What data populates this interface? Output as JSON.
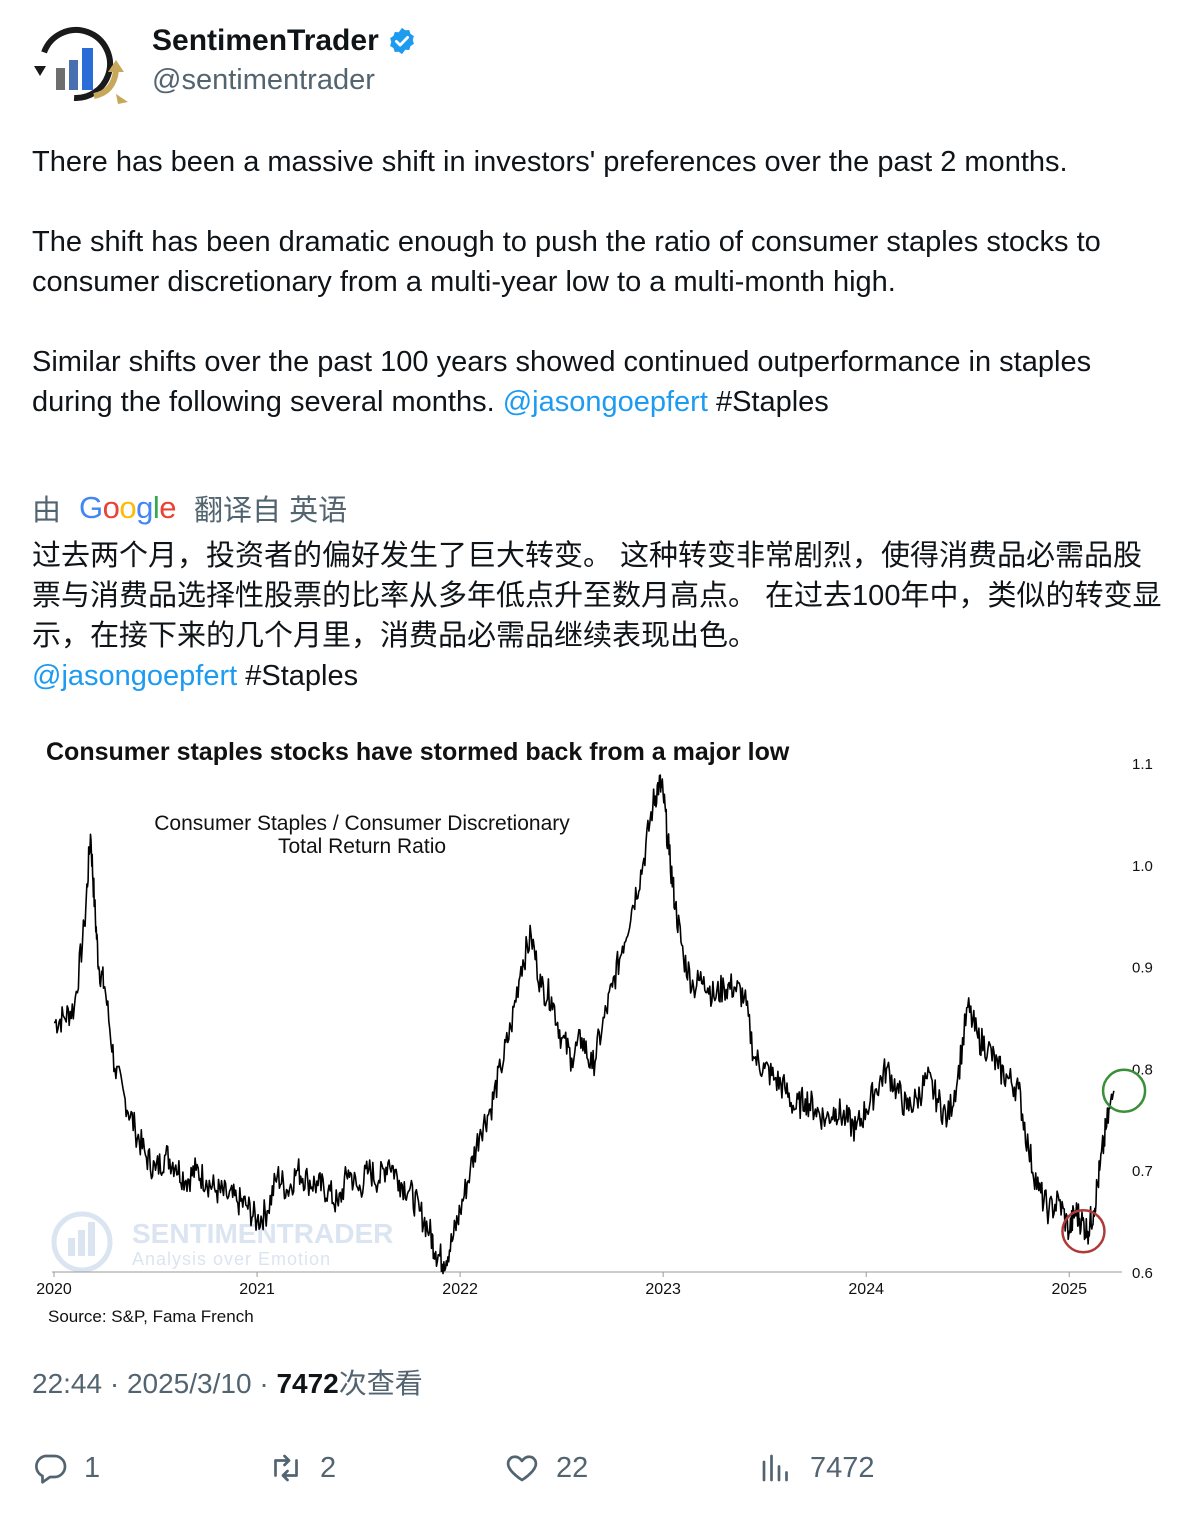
{
  "author": {
    "name": "SentimenTrader",
    "handle": "@sentimentrader",
    "verified_color": "#1d9bf0"
  },
  "tweet": {
    "p1": "There has been a massive shift in investors' preferences over the past 2 months.",
    "p2": "The shift has been dramatic enough to push the ratio of consumer staples stocks to consumer discretionary from a multi-year low to a multi-month high.",
    "p3": "Similar shifts over the past 100 years showed continued outperformance in staples during the following several months.",
    "mention": "@jasongoepfert",
    "hashtag": "#Staples"
  },
  "translation": {
    "prefix": "由",
    "provider": "Google",
    "suffix": "翻译自 英语",
    "text": "过去两个月，投资者的偏好发生了巨大转变。 这种转变非常剧烈，使得消费品必需品股票与消费品选择性股票的比率从多年低点升至数月高点。 在过去100年中，类似的转变显示，在接下来的几个月里，消费品必需品继续表现出色。",
    "mention": "@jasongoepfert",
    "hashtag": "#Staples"
  },
  "chart_data": {
    "type": "line",
    "title": "Consumer staples stocks have stormed back from a major low",
    "series_label_line1": "Consumer Staples / Consumer Discretionary",
    "series_label_line2": "Total Return Ratio",
    "source": "Source: S&P, Fama French",
    "watermark_brand": "SENTIMENTRADER",
    "watermark_tagline": "Analysis over Emotion",
    "x_ticks": [
      "2020",
      "2021",
      "2022",
      "2023",
      "2024",
      "2025"
    ],
    "y_ticks": [
      "1.1",
      "1.0",
      "0.9",
      "0.8",
      "0.7",
      "0.6"
    ],
    "xlim": [
      2020.0,
      2025.25
    ],
    "ylim": [
      0.6,
      1.1
    ],
    "annotations": [
      {
        "label": "multi-year low",
        "x": 2025.07,
        "y": 0.64,
        "color": "#b03a3a"
      },
      {
        "label": "multi-month high",
        "x": 2025.27,
        "y": 0.778,
        "color": "#3a8f3a"
      }
    ],
    "series": [
      {
        "name": "Consumer Staples / Consumer Discretionary Total Return Ratio",
        "x": [
          2020.0,
          2020.05,
          2020.1,
          2020.15,
          2020.18,
          2020.2,
          2020.22,
          2020.25,
          2020.3,
          2020.35,
          2020.4,
          2020.45,
          2020.5,
          2020.55,
          2020.6,
          2020.65,
          2020.7,
          2020.75,
          2020.8,
          2020.85,
          2020.9,
          2020.95,
          2021.0,
          2021.05,
          2021.1,
          2021.15,
          2021.2,
          2021.25,
          2021.3,
          2021.35,
          2021.4,
          2021.45,
          2021.5,
          2021.55,
          2021.6,
          2021.65,
          2021.7,
          2021.75,
          2021.8,
          2021.85,
          2021.88,
          2021.92,
          2021.96,
          2022.0,
          2022.05,
          2022.1,
          2022.15,
          2022.2,
          2022.25,
          2022.3,
          2022.35,
          2022.4,
          2022.45,
          2022.5,
          2022.55,
          2022.6,
          2022.65,
          2022.7,
          2022.75,
          2022.8,
          2022.85,
          2022.9,
          2022.95,
          2022.98,
          2023.0,
          2023.03,
          2023.06,
          2023.1,
          2023.15,
          2023.2,
          2023.25,
          2023.3,
          2023.35,
          2023.4,
          2023.45,
          2023.5,
          2023.55,
          2023.6,
          2023.65,
          2023.7,
          2023.75,
          2023.8,
          2023.85,
          2023.9,
          2023.95,
          2024.0,
          2024.05,
          2024.1,
          2024.15,
          2024.2,
          2024.25,
          2024.3,
          2024.35,
          2024.4,
          2024.45,
          2024.5,
          2024.55,
          2024.6,
          2024.65,
          2024.7,
          2024.75,
          2024.8,
          2024.85,
          2024.9,
          2024.95,
          2025.0,
          2025.03,
          2025.06,
          2025.09,
          2025.12,
          2025.15,
          2025.18,
          2025.22
        ],
        "y": [
          0.845,
          0.85,
          0.86,
          0.94,
          1.03,
          0.96,
          0.9,
          0.88,
          0.8,
          0.77,
          0.74,
          0.715,
          0.7,
          0.715,
          0.705,
          0.69,
          0.7,
          0.69,
          0.68,
          0.675,
          0.67,
          0.665,
          0.65,
          0.66,
          0.695,
          0.68,
          0.7,
          0.69,
          0.685,
          0.68,
          0.665,
          0.7,
          0.68,
          0.7,
          0.69,
          0.71,
          0.69,
          0.68,
          0.66,
          0.64,
          0.62,
          0.61,
          0.63,
          0.66,
          0.7,
          0.74,
          0.76,
          0.8,
          0.84,
          0.9,
          0.93,
          0.88,
          0.87,
          0.83,
          0.81,
          0.83,
          0.8,
          0.84,
          0.88,
          0.92,
          0.96,
          1.0,
          1.06,
          1.08,
          1.07,
          1.01,
          0.96,
          0.91,
          0.88,
          0.89,
          0.87,
          0.88,
          0.88,
          0.87,
          0.81,
          0.8,
          0.79,
          0.78,
          0.76,
          0.77,
          0.76,
          0.75,
          0.76,
          0.75,
          0.74,
          0.76,
          0.78,
          0.8,
          0.78,
          0.76,
          0.77,
          0.79,
          0.77,
          0.75,
          0.79,
          0.86,
          0.83,
          0.82,
          0.8,
          0.79,
          0.78,
          0.72,
          0.68,
          0.66,
          0.67,
          0.64,
          0.66,
          0.65,
          0.64,
          0.66,
          0.7,
          0.74,
          0.778
        ]
      }
    ]
  },
  "meta": {
    "time": "22:44",
    "dot1": " · ",
    "date": "2025/3/10",
    "dot2": " · ",
    "views_count": "7472",
    "views_label": "次查看"
  },
  "actions": {
    "replies": "1",
    "retweets": "2",
    "likes": "22",
    "views": "7472"
  }
}
